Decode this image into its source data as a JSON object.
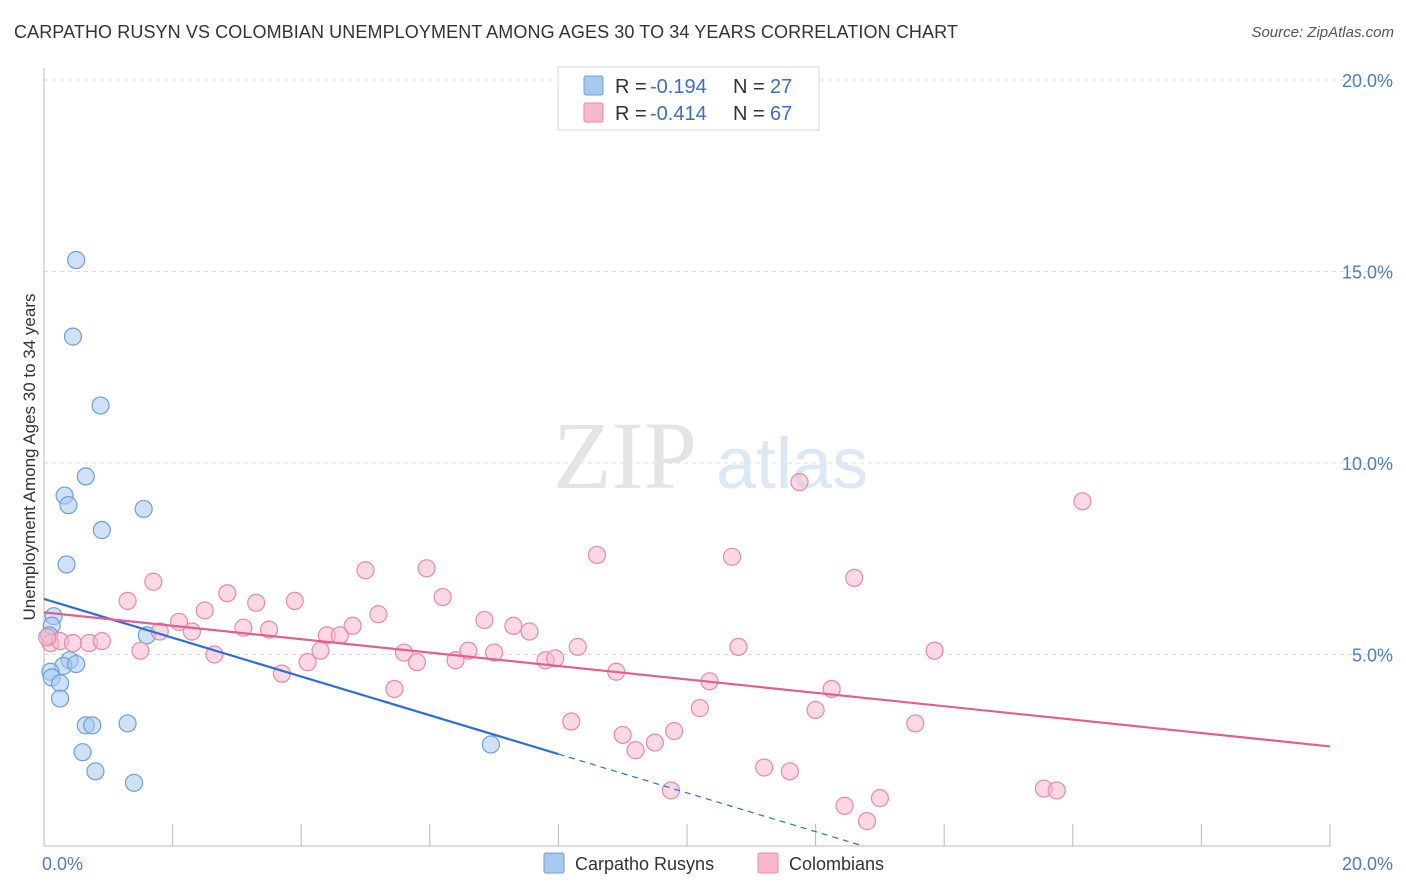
{
  "title": "CARPATHO RUSYN VS COLOMBIAN UNEMPLOYMENT AMONG AGES 30 TO 34 YEARS CORRELATION CHART",
  "source": "Source: ZipAtlas.com",
  "watermark": {
    "zip": "ZIP",
    "atlas": "atlas"
  },
  "legend": {
    "rows": [
      {
        "r_label": "R =",
        "r_value": "-0.194",
        "n_label": "N =",
        "n_value": "27",
        "color": "#a8c8f0",
        "stroke": "#6f9fd8"
      },
      {
        "r_label": "R =",
        "r_value": "-0.414",
        "n_label": "N =",
        "n_value": "67",
        "color": "#f7b8cc",
        "stroke": "#e88aa8"
      }
    ]
  },
  "chart_data": {
    "type": "scatter",
    "title": "CARPATHO RUSYN VS COLOMBIAN UNEMPLOYMENT AMONG AGES 30 TO 34 YEARS CORRELATION CHART",
    "xlabel": "",
    "ylabel": "Unemployment Among Ages 30 to 34 years",
    "xlim": [
      0,
      20
    ],
    "ylim": [
      0,
      20
    ],
    "x_tick_labels": [
      "0.0%",
      "20.0%"
    ],
    "y_ticks": [
      5,
      10,
      15,
      20
    ],
    "y_tick_labels": [
      "5.0%",
      "10.0%",
      "15.0%",
      "20.0%"
    ],
    "series": [
      {
        "name": "Carpatho Rusyns",
        "color": "#a8c8f0",
        "stroke": "#6f9fd8",
        "line_color": "#2f6fd0",
        "trend": {
          "x0": 0,
          "y0": 6.45,
          "x1": 8.0,
          "y1": 2.4,
          "dash_to_x": 12.7
        },
        "points": [
          [
            0.5,
            15.3
          ],
          [
            0.45,
            13.3
          ],
          [
            0.88,
            11.5
          ],
          [
            0.65,
            9.65
          ],
          [
            0.32,
            9.15
          ],
          [
            0.38,
            8.9
          ],
          [
            0.9,
            8.25
          ],
          [
            1.55,
            8.8
          ],
          [
            0.35,
            7.35
          ],
          [
            0.15,
            6.0
          ],
          [
            0.12,
            5.75
          ],
          [
            0.08,
            5.5
          ],
          [
            1.6,
            5.5
          ],
          [
            0.4,
            4.85
          ],
          [
            0.3,
            4.7
          ],
          [
            0.5,
            4.75
          ],
          [
            0.1,
            4.55
          ],
          [
            0.12,
            4.4
          ],
          [
            0.25,
            4.25
          ],
          [
            0.25,
            3.85
          ],
          [
            0.65,
            3.15
          ],
          [
            0.75,
            3.15
          ],
          [
            1.3,
            3.2
          ],
          [
            0.6,
            2.45
          ],
          [
            0.8,
            1.95
          ],
          [
            1.4,
            1.65
          ],
          [
            6.95,
            2.65
          ]
        ]
      },
      {
        "name": "Colombians",
        "color": "#f7b8cc",
        "stroke": "#e88aa8",
        "line_color": "#e0608f",
        "trend": {
          "x0": 0,
          "y0": 6.1,
          "x1": 20,
          "y1": 2.6
        },
        "points": [
          [
            0.1,
            5.3
          ],
          [
            0.25,
            5.35
          ],
          [
            0.45,
            5.3
          ],
          [
            0.7,
            5.3
          ],
          [
            0.9,
            5.35
          ],
          [
            1.3,
            6.4
          ],
          [
            1.5,
            5.1
          ],
          [
            1.7,
            6.9
          ],
          [
            1.8,
            5.6
          ],
          [
            2.1,
            5.85
          ],
          [
            2.3,
            5.6
          ],
          [
            2.5,
            6.15
          ],
          [
            2.65,
            5.0
          ],
          [
            2.85,
            6.6
          ],
          [
            3.1,
            5.7
          ],
          [
            3.3,
            6.35
          ],
          [
            3.5,
            5.65
          ],
          [
            3.7,
            4.5
          ],
          [
            3.9,
            6.4
          ],
          [
            4.1,
            4.8
          ],
          [
            4.3,
            5.1
          ],
          [
            4.4,
            5.5
          ],
          [
            4.6,
            5.5
          ],
          [
            4.8,
            5.75
          ],
          [
            5.0,
            7.2
          ],
          [
            5.2,
            6.05
          ],
          [
            5.45,
            4.1
          ],
          [
            5.6,
            5.05
          ],
          [
            5.8,
            4.8
          ],
          [
            5.95,
            7.25
          ],
          [
            6.2,
            6.5
          ],
          [
            6.4,
            4.85
          ],
          [
            6.6,
            5.1
          ],
          [
            6.85,
            5.9
          ],
          [
            7.0,
            5.05
          ],
          [
            7.3,
            5.75
          ],
          [
            7.55,
            5.6
          ],
          [
            7.8,
            4.85
          ],
          [
            7.95,
            4.9
          ],
          [
            8.2,
            3.25
          ],
          [
            8.3,
            5.2
          ],
          [
            8.6,
            7.6
          ],
          [
            8.9,
            4.55
          ],
          [
            9.0,
            2.9
          ],
          [
            9.2,
            2.5
          ],
          [
            9.5,
            2.7
          ],
          [
            9.75,
            1.45
          ],
          [
            9.8,
            3.0
          ],
          [
            10.2,
            3.6
          ],
          [
            10.35,
            4.3
          ],
          [
            10.7,
            7.55
          ],
          [
            10.8,
            5.2
          ],
          [
            11.2,
            2.05
          ],
          [
            11.6,
            1.95
          ],
          [
            11.75,
            9.5
          ],
          [
            12.0,
            3.55
          ],
          [
            12.25,
            4.1
          ],
          [
            12.45,
            1.05
          ],
          [
            12.6,
            7.0
          ],
          [
            12.8,
            0.65
          ],
          [
            13.0,
            1.25
          ],
          [
            13.55,
            3.2
          ],
          [
            13.85,
            5.1
          ],
          [
            16.15,
            9.0
          ],
          [
            15.55,
            1.5
          ],
          [
            15.75,
            1.45
          ],
          [
            0.05,
            5.45
          ]
        ]
      }
    ]
  }
}
